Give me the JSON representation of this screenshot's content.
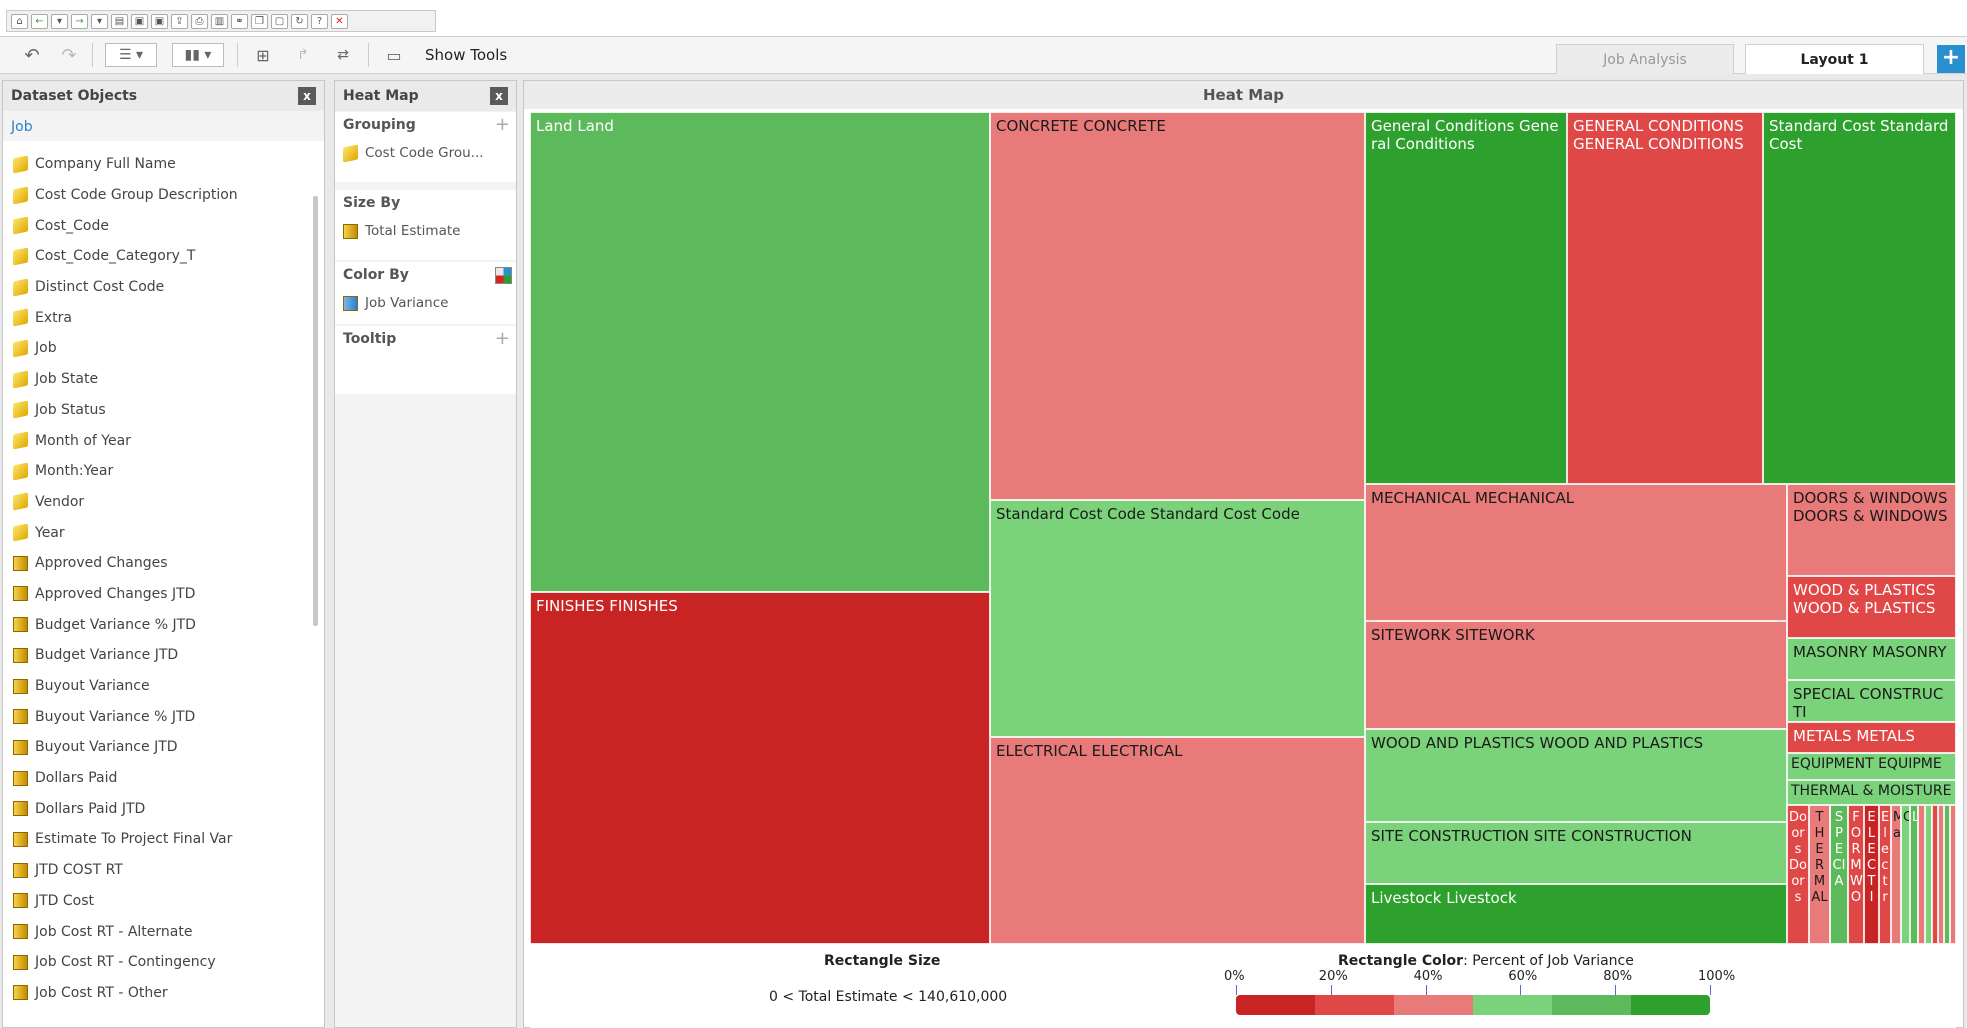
{
  "menubar": {
    "icons": [
      "home-icon",
      "back-icon",
      "dropdown-icon",
      "forward-icon",
      "dropdown-icon",
      "open-icon",
      "save-icon",
      "save-as-icon",
      "export-icon",
      "print-icon",
      "pdf-icon",
      "link-icon",
      "copy-icon",
      "paste-icon",
      "refresh-icon",
      "help-icon",
      "close-icon"
    ]
  },
  "toolbar": {
    "show_tools": "Show Tools"
  },
  "tabs": [
    {
      "label": "Job Analysis"
    },
    {
      "label": "Layout 1"
    }
  ],
  "dataset": {
    "title": "Dataset Objects",
    "root": "Job",
    "attributes": [
      "Company Full Name",
      "Cost Code Group Description",
      "Cost_Code",
      "Cost_Code_Category_T",
      "Distinct Cost Code",
      "Extra",
      "Job",
      "Job State",
      "Job Status",
      "Month of Year",
      "Month:Year",
      "Vendor",
      "Year"
    ],
    "metrics": [
      "Approved Changes",
      "Approved Changes JTD",
      "Budget Variance % JTD",
      "Budget Variance JTD",
      "Buyout Variance",
      "Buyout Variance % JTD",
      "Buyout Variance JTD",
      "Dollars Paid",
      "Dollars Paid JTD",
      "Estimate To Project Final Var",
      "JTD COST RT",
      "JTD Cost",
      "Job Cost RT - Alternate",
      "Job Cost RT - Contingency",
      "Job Cost RT - Other"
    ]
  },
  "heatmap_panel": {
    "title": "Heat Map",
    "grouping_label": "Grouping",
    "grouping_value": "Cost Code Grou...",
    "size_label": "Size By",
    "size_value": "Total Estimate",
    "color_label": "Color By",
    "color_value": "Job Variance",
    "tooltip_label": "Tooltip"
  },
  "main": {
    "title": "Heat Map"
  },
  "chart_data": {
    "type": "heatmap",
    "title": "Heat Map",
    "cells": [
      {
        "label": "Land Land",
        "color": "#5cba5c"
      },
      {
        "label": "FINISHES FINISHES",
        "color": "#c92424"
      },
      {
        "label": "CONCRETE CONCRETE",
        "color": "#e87a7a"
      },
      {
        "label": "Standard Cost Code Standard Cost Code",
        "color": "#7ad37a"
      },
      {
        "label": "ELECTRICAL ELECTRICAL",
        "color": "#e87a7a"
      },
      {
        "label": "General Conditions General Conditions",
        "color": "#2ea02e"
      },
      {
        "label": "GENERAL CONDITIONS GENERAL CONDITIONS",
        "color": "#e04848"
      },
      {
        "label": "Standard Cost Standard Cost",
        "color": "#2ea02e"
      },
      {
        "label": "MECHANICAL MECHANICAL",
        "color": "#e87a7a"
      },
      {
        "label": "SITEWORK SITEWORK",
        "color": "#e87a7a"
      },
      {
        "label": "WOOD AND PLASTICS WOOD AND PLASTICS",
        "color": "#7ad37a"
      },
      {
        "label": "SITE CONSTRUCTION SITE CONSTRUCTION",
        "color": "#7ad37a"
      },
      {
        "label": "Livestock Livestock",
        "color": "#2ea02e"
      },
      {
        "label": "DOORS & WINDOWS DOORS & WINDOWS",
        "color": "#e87a7a"
      },
      {
        "label": "WOOD & PLASTICS WOOD & PLASTICS",
        "color": "#e04848"
      },
      {
        "label": "MASONRY MASONRY",
        "color": "#7ad37a"
      },
      {
        "label": "SPECIAL CONSTRUCTI",
        "color": "#7ad37a"
      },
      {
        "label": "METALS METALS",
        "color": "#e04848"
      },
      {
        "label": "EQUIPMENT EQUIPME",
        "color": "#7ad37a"
      },
      {
        "label": "THERMAL & MOISTURE",
        "color": "#7ad37a"
      },
      {
        "label": "Doors Doors",
        "color": "#e04848"
      },
      {
        "label": "THERMAL",
        "color": "#e87a7a"
      },
      {
        "label": "SPECIA",
        "color": "#5cba5c"
      },
      {
        "label": "FORMWO",
        "color": "#e04848"
      },
      {
        "label": "ELECTI",
        "color": "#c92424"
      },
      {
        "label": "Electr",
        "color": "#e04848"
      },
      {
        "label": "Ma",
        "color": "#e87a7a"
      },
      {
        "label": "C",
        "color": "#7ad37a"
      },
      {
        "label": "L",
        "color": "#5cba5c"
      },
      {
        "label": "",
        "color": "#e87a7a"
      },
      {
        "label": "",
        "color": "#7ad37a"
      },
      {
        "label": "",
        "color": "#e04848"
      },
      {
        "label": "",
        "color": "#e87a7a"
      },
      {
        "label": "",
        "color": "#5cba5c"
      },
      {
        "label": "",
        "color": "#e87a7a"
      }
    ],
    "legend": {
      "size_title": "Rectangle Size",
      "size_range": "0 < Total Estimate < 140,610,000",
      "color_title": "Rectangle Color",
      "color_desc": ": Percent of Job Variance",
      "ticks": [
        "0%",
        "20%",
        "40%",
        "60%",
        "80%",
        "100%"
      ],
      "ramp": [
        "#c92424",
        "#e04848",
        "#e87a7a",
        "#7ad37a",
        "#5cba5c",
        "#2ea02e"
      ]
    }
  }
}
